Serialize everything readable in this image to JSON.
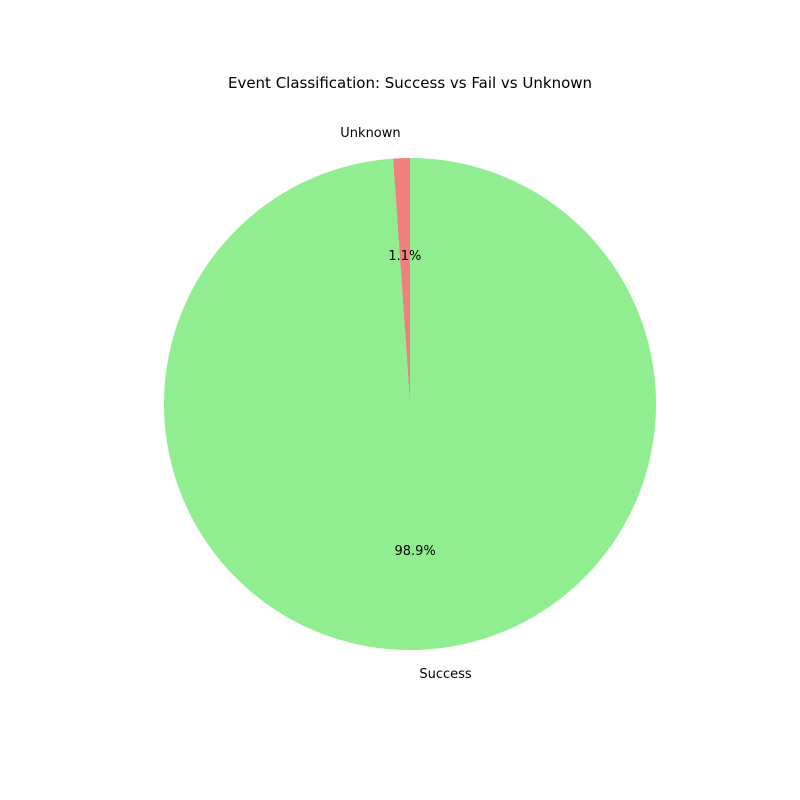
{
  "chart_data": {
    "type": "pie",
    "title": "Event Classification: Success vs Fail vs Unknown",
    "slices": [
      {
        "label": "Unknown",
        "value": 1.1,
        "pct_label": "1.1%",
        "color": "#f08080"
      },
      {
        "label": "Success",
        "value": 98.9,
        "pct_label": "98.9%",
        "color": "#90ee90"
      }
    ],
    "start_angle_deg": 90,
    "direction": "counterclockwise",
    "legend": "none"
  }
}
